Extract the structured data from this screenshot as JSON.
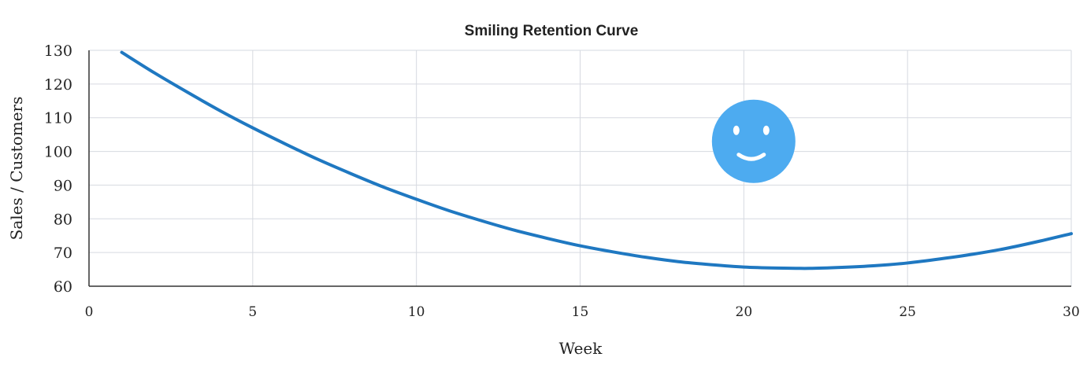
{
  "chart_data": {
    "type": "line",
    "title": "Smiling Retention Curve",
    "xlabel": "Week",
    "ylabel": "Sales / Customers",
    "xlim": [
      0,
      30
    ],
    "ylim": [
      60,
      130
    ],
    "xticks": [
      "0",
      "5",
      "10",
      "15",
      "20",
      "25",
      "30"
    ],
    "yticks": [
      "60",
      "70",
      "80",
      "90",
      "100",
      "110",
      "120",
      "130"
    ],
    "grid": true,
    "line_color": "#1f78c1",
    "x": [
      1,
      2,
      3,
      4,
      5,
      6,
      7,
      8,
      9,
      10,
      11,
      12,
      13,
      14,
      15,
      16,
      17,
      18,
      19,
      20,
      21,
      22,
      23,
      24,
      25,
      26,
      27,
      28,
      29,
      30
    ],
    "y": [
      129.4,
      123.3,
      117.6,
      112.1,
      107.0,
      102.2,
      97.6,
      93.4,
      89.4,
      85.8,
      82.4,
      79.4,
      76.6,
      74.2,
      72.0,
      70.2,
      68.6,
      67.3,
      66.4,
      65.7,
      65.4,
      65.3,
      65.6,
      66.1,
      66.9,
      68.1,
      69.5,
      71.2,
      73.3,
      75.6
    ],
    "annotations": [
      {
        "type": "smiley-face-icon",
        "color": "#4dabf0",
        "x": 20.3,
        "y": 103
      }
    ]
  }
}
